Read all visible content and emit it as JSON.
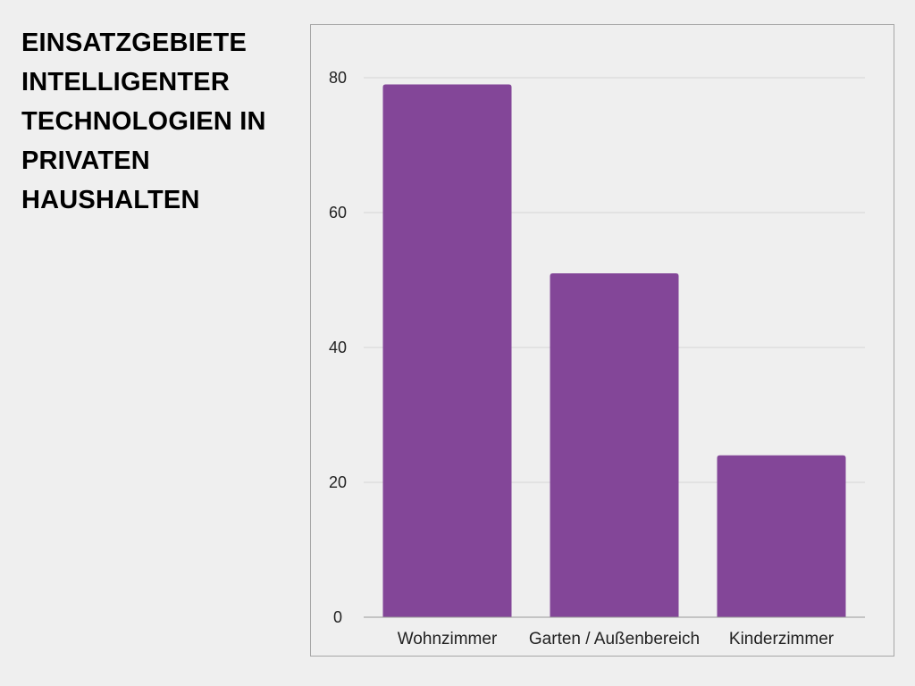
{
  "slide": {
    "title": "EINSATZGEBIETE INTELLIGENTER TECHNOLOGIEN IN PRIVATEN HAUSHALTEN"
  },
  "chart_data": {
    "type": "bar",
    "categories": [
      "Wohnzimmer",
      "Garten / Außenbereich",
      "Kinderzimmer"
    ],
    "values": [
      79,
      51,
      24
    ],
    "ylim": [
      0,
      80
    ],
    "yticks": [
      0,
      20,
      40,
      60,
      80
    ],
    "grid": true,
    "legend": "none",
    "colors": {
      "bar": "#834698",
      "grid": "#d6d6d6",
      "axis": "#9a9a9a"
    }
  }
}
